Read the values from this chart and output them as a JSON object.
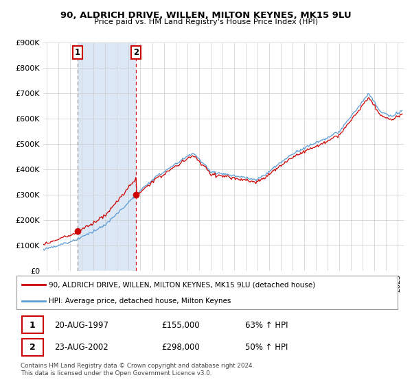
{
  "title": "90, ALDRICH DRIVE, WILLEN, MILTON KEYNES, MK15 9LU",
  "subtitle": "Price paid vs. HM Land Registry's House Price Index (HPI)",
  "ylim": [
    0,
    900000
  ],
  "yticks": [
    0,
    100000,
    200000,
    300000,
    400000,
    500000,
    600000,
    700000,
    800000,
    900000
  ],
  "ytick_labels": [
    "£0",
    "£100K",
    "£200K",
    "£300K",
    "£400K",
    "£500K",
    "£600K",
    "£700K",
    "£800K",
    "£900K"
  ],
  "xlim_start": 1994.7,
  "xlim_end": 2025.5,
  "sale1_date": 1997.63,
  "sale1_price": 155000,
  "sale2_date": 2002.63,
  "sale2_price": 298000,
  "legend_line1": "90, ALDRICH DRIVE, WILLEN, MILTON KEYNES, MK15 9LU (detached house)",
  "legend_line2": "HPI: Average price, detached house, Milton Keynes",
  "footer": "Contains HM Land Registry data © Crown copyright and database right 2024.\nThis data is licensed under the Open Government Licence v3.0.",
  "hpi_color": "#5b9bd5",
  "price_color": "#cc0000",
  "shade_color": "#dce8f5",
  "grid_color": "#cccccc",
  "bg_color": "#ffffff",
  "sale1_vline_color": "#888888",
  "sale2_vline_color": "#cc0000"
}
